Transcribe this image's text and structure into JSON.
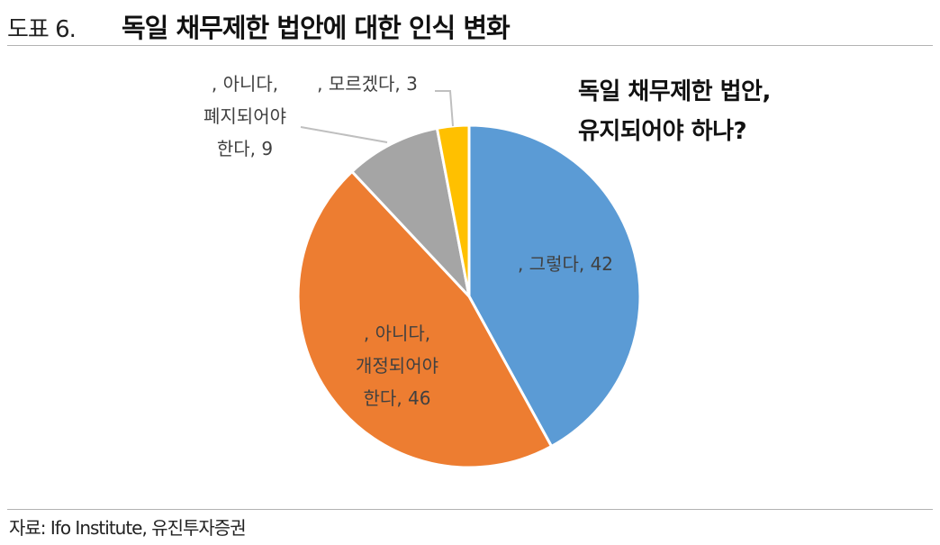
{
  "header": {
    "figure_label": "도표 6.",
    "title": "독일 채무제한 법안에 대한 인식 변화"
  },
  "source": "자료: Ifo Institute, 유진투자증권",
  "chart_data": {
    "type": "pie",
    "title": "독일 채무제한 법안, 유지되어야 하나?",
    "title_lines": [
      "독일 채무제한 법안,",
      "유지되어야 하나?"
    ],
    "start": "12 o'clock, clockwise",
    "slices": [
      {
        "label_lines": [
          ", 그렇다, 42"
        ],
        "value": 42,
        "color": "#5b9bd5"
      },
      {
        "label_lines": [
          ", 아니다,",
          "개정되어야",
          "한다, 46"
        ],
        "value": 46,
        "color": "#ed7d31"
      },
      {
        "label_lines": [
          ", 아니다,",
          "폐지되어야",
          "한다, 9"
        ],
        "value": 9,
        "color": "#a5a5a5"
      },
      {
        "label_lines": [
          ", 모르겠다, 3"
        ],
        "value": 3,
        "color": "#ffc000"
      }
    ]
  }
}
